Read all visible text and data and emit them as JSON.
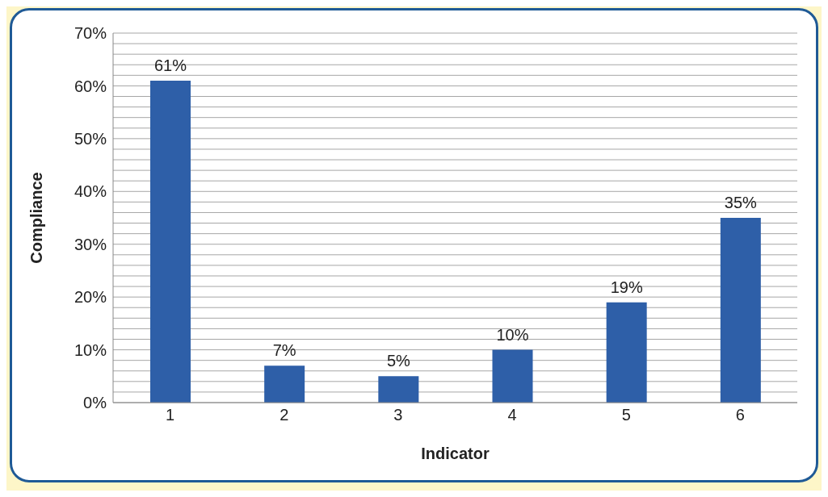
{
  "chart_data": {
    "type": "bar",
    "xlabel": "Indicator",
    "ylabel": "Compliance",
    "categories": [
      "1",
      "2",
      "3",
      "4",
      "5",
      "6"
    ],
    "values": [
      61,
      7,
      5,
      10,
      19,
      35
    ],
    "value_labels": [
      "61%",
      "7%",
      "5%",
      "10%",
      "19%",
      "35%"
    ],
    "color": "#2e5fa8",
    "ylim": [
      0,
      70
    ],
    "yticks": [
      {
        "value": 0,
        "label": "0%"
      },
      {
        "value": 2,
        "label": null
      },
      {
        "value": 4,
        "label": null
      },
      {
        "value": 6,
        "label": null
      },
      {
        "value": 8,
        "label": null
      },
      {
        "value": 10,
        "label": "10%"
      },
      {
        "value": 12,
        "label": null
      },
      {
        "value": 14,
        "label": null
      },
      {
        "value": 16,
        "label": null
      },
      {
        "value": 18,
        "label": null
      },
      {
        "value": 20,
        "label": "20%"
      },
      {
        "value": 22,
        "label": null
      },
      {
        "value": 24,
        "label": null
      },
      {
        "value": 26,
        "label": null
      },
      {
        "value": 28,
        "label": null
      },
      {
        "value": 30,
        "label": "30%"
      },
      {
        "value": 32,
        "label": null
      },
      {
        "value": 34,
        "label": null
      },
      {
        "value": 36,
        "label": null
      },
      {
        "value": 38,
        "label": null
      },
      {
        "value": 40,
        "label": "40%"
      },
      {
        "value": 42,
        "label": null
      },
      {
        "value": 44,
        "label": null
      },
      {
        "value": 46,
        "label": null
      },
      {
        "value": 48,
        "label": null
      },
      {
        "value": 50,
        "label": "50%"
      },
      {
        "value": 52,
        "label": null
      },
      {
        "value": 54,
        "label": null
      },
      {
        "value": 56,
        "label": null
      },
      {
        "value": 58,
        "label": null
      },
      {
        "value": 60,
        "label": "60%"
      },
      {
        "value": 62,
        "label": null
      },
      {
        "value": 64,
        "label": null
      },
      {
        "value": 66,
        "label": null
      },
      {
        "value": 68,
        "label": null
      },
      {
        "value": 70,
        "label": "70%"
      }
    ],
    "grid": "y",
    "legend": false
  }
}
